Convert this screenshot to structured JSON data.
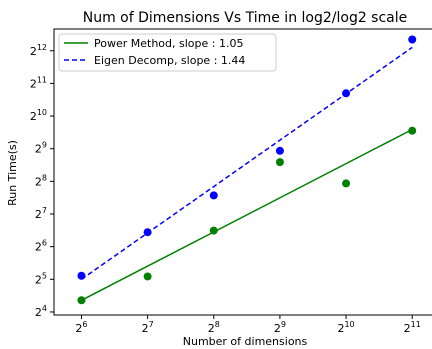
{
  "chart_data": {
    "type": "scatter",
    "title": "Num of Dimensions Vs Time in log2/log2 scale",
    "xlabel": "Number of dimensions",
    "ylabel": "Run Time(s)",
    "x_scale": "log2",
    "y_scale": "log2",
    "xlim": [
      48,
      2600
    ],
    "ylim": [
      15,
      6500
    ],
    "grid": false,
    "legend_position": "top-left",
    "x_ticks": [
      {
        "value": 64,
        "base": "2",
        "exp": "6"
      },
      {
        "value": 128,
        "base": "2",
        "exp": "7"
      },
      {
        "value": 256,
        "base": "2",
        "exp": "8"
      },
      {
        "value": 512,
        "base": "2",
        "exp": "9"
      },
      {
        "value": 1024,
        "base": "2",
        "exp": "10"
      },
      {
        "value": 2048,
        "base": "2",
        "exp": "11"
      }
    ],
    "y_ticks": [
      {
        "value": 16,
        "base": "2",
        "exp": "4"
      },
      {
        "value": 32,
        "base": "2",
        "exp": "5"
      },
      {
        "value": 64,
        "base": "2",
        "exp": "6"
      },
      {
        "value": 128,
        "base": "2",
        "exp": "7"
      },
      {
        "value": 256,
        "base": "2",
        "exp": "8"
      },
      {
        "value": 512,
        "base": "2",
        "exp": "9"
      },
      {
        "value": 1024,
        "base": "2",
        "exp": "10"
      },
      {
        "value": 2048,
        "base": "2",
        "exp": "11"
      },
      {
        "value": 4096,
        "base": "2",
        "exp": "12"
      }
    ],
    "series": [
      {
        "name": "Power Method, slope : 1.05",
        "color": "#008000",
        "line_style": "solid",
        "points": [
          {
            "x": 64,
            "y": 20.5
          },
          {
            "x": 128,
            "y": 34
          },
          {
            "x": 256,
            "y": 90
          },
          {
            "x": 512,
            "y": 385
          },
          {
            "x": 1024,
            "y": 245
          },
          {
            "x": 2048,
            "y": 750
          }
        ],
        "fit_line": [
          {
            "x": 64,
            "y": 20.5
          },
          {
            "x": 2048,
            "y": 770
          }
        ]
      },
      {
        "name": "Eigen Decomp, slope : 1.44",
        "color": "#0000ff",
        "line_style": "dashed",
        "points": [
          {
            "x": 64,
            "y": 34.5
          },
          {
            "x": 128,
            "y": 87
          },
          {
            "x": 256,
            "y": 190
          },
          {
            "x": 512,
            "y": 490
          },
          {
            "x": 1024,
            "y": 1660
          },
          {
            "x": 2048,
            "y": 5200
          }
        ],
        "fit_line": [
          {
            "x": 64,
            "y": 32
          },
          {
            "x": 2048,
            "y": 4400
          }
        ]
      }
    ]
  }
}
